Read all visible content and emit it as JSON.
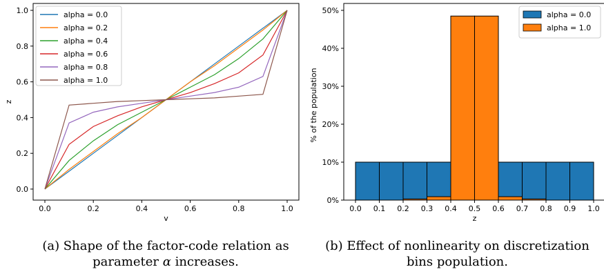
{
  "chart_data": [
    {
      "type": "line",
      "title": "",
      "xlabel": "v",
      "ylabel": "z",
      "xlim": [
        0,
        1
      ],
      "ylim": [
        0,
        1
      ],
      "xticks": [
        "0.0",
        "0.2",
        "0.4",
        "0.6",
        "0.8",
        "1.0"
      ],
      "yticks": [
        "0.0",
        "0.2",
        "0.4",
        "0.6",
        "0.8",
        "1.0"
      ],
      "legend_position": "top-left",
      "grid": false,
      "x": [
        0.0,
        0.1,
        0.2,
        0.3,
        0.4,
        0.5,
        0.6,
        0.7,
        0.8,
        0.9,
        1.0
      ],
      "series": [
        {
          "name": "alpha = 0.0",
          "color": "#1f77b4",
          "values": [
            0.0,
            0.1,
            0.2,
            0.3,
            0.4,
            0.5,
            0.6,
            0.7,
            0.8,
            0.9,
            1.0
          ]
        },
        {
          "name": "alpha = 0.2",
          "color": "#ff7f0e",
          "values": [
            0.0,
            0.11,
            0.21,
            0.31,
            0.4,
            0.5,
            0.6,
            0.69,
            0.79,
            0.89,
            1.0
          ]
        },
        {
          "name": "alpha = 0.4",
          "color": "#2ca02c",
          "values": [
            0.0,
            0.16,
            0.27,
            0.36,
            0.43,
            0.5,
            0.57,
            0.64,
            0.73,
            0.84,
            1.0
          ]
        },
        {
          "name": "alpha = 0.6",
          "color": "#d62728",
          "values": [
            0.0,
            0.25,
            0.35,
            0.41,
            0.46,
            0.5,
            0.54,
            0.59,
            0.65,
            0.75,
            1.0
          ]
        },
        {
          "name": "alpha = 0.8",
          "color": "#9467bd",
          "values": [
            0.0,
            0.37,
            0.43,
            0.46,
            0.48,
            0.5,
            0.52,
            0.54,
            0.57,
            0.63,
            1.0
          ]
        },
        {
          "name": "alpha = 1.0",
          "color": "#8c564b",
          "values": [
            0.0,
            0.47,
            0.48,
            0.49,
            0.495,
            0.5,
            0.505,
            0.51,
            0.52,
            0.53,
            1.0
          ]
        }
      ]
    },
    {
      "type": "bar",
      "title": "",
      "xlabel": "z",
      "ylabel": "% of the population",
      "xlim": [
        0,
        1
      ],
      "ylim": [
        0,
        50
      ],
      "xticks": [
        "0.0",
        "0.1",
        "0.2",
        "0.3",
        "0.4",
        "0.5",
        "0.6",
        "0.7",
        "0.8",
        "0.9",
        "1.0"
      ],
      "yticks": [
        "0%",
        "10%",
        "20%",
        "30%",
        "40%",
        "50%"
      ],
      "legend_position": "top-right",
      "grid": false,
      "bin_edges": [
        0.0,
        0.1,
        0.2,
        0.3,
        0.4,
        0.5,
        0.6,
        0.7,
        0.8,
        0.9,
        1.0
      ],
      "series": [
        {
          "name": "alpha = 0.0",
          "color": "#1f77b4",
          "values": [
            10,
            10,
            10,
            10,
            0,
            0,
            10,
            10,
            10,
            10
          ]
        },
        {
          "name": "alpha = 1.0",
          "color": "#ff7f0e",
          "values": [
            0,
            0,
            0.3,
            0.9,
            48.5,
            48.5,
            0.9,
            0.3,
            0,
            0
          ]
        }
      ]
    }
  ],
  "captions": {
    "a_line1": "(a) Shape of the factor-code relation as",
    "a_line2_prefix": "parameter ",
    "a_symbol": "α",
    "a_line2_suffix": " increases.",
    "b_line1": "(b) Effect of nonlinearity on discretization",
    "b_line2": "bins population."
  }
}
